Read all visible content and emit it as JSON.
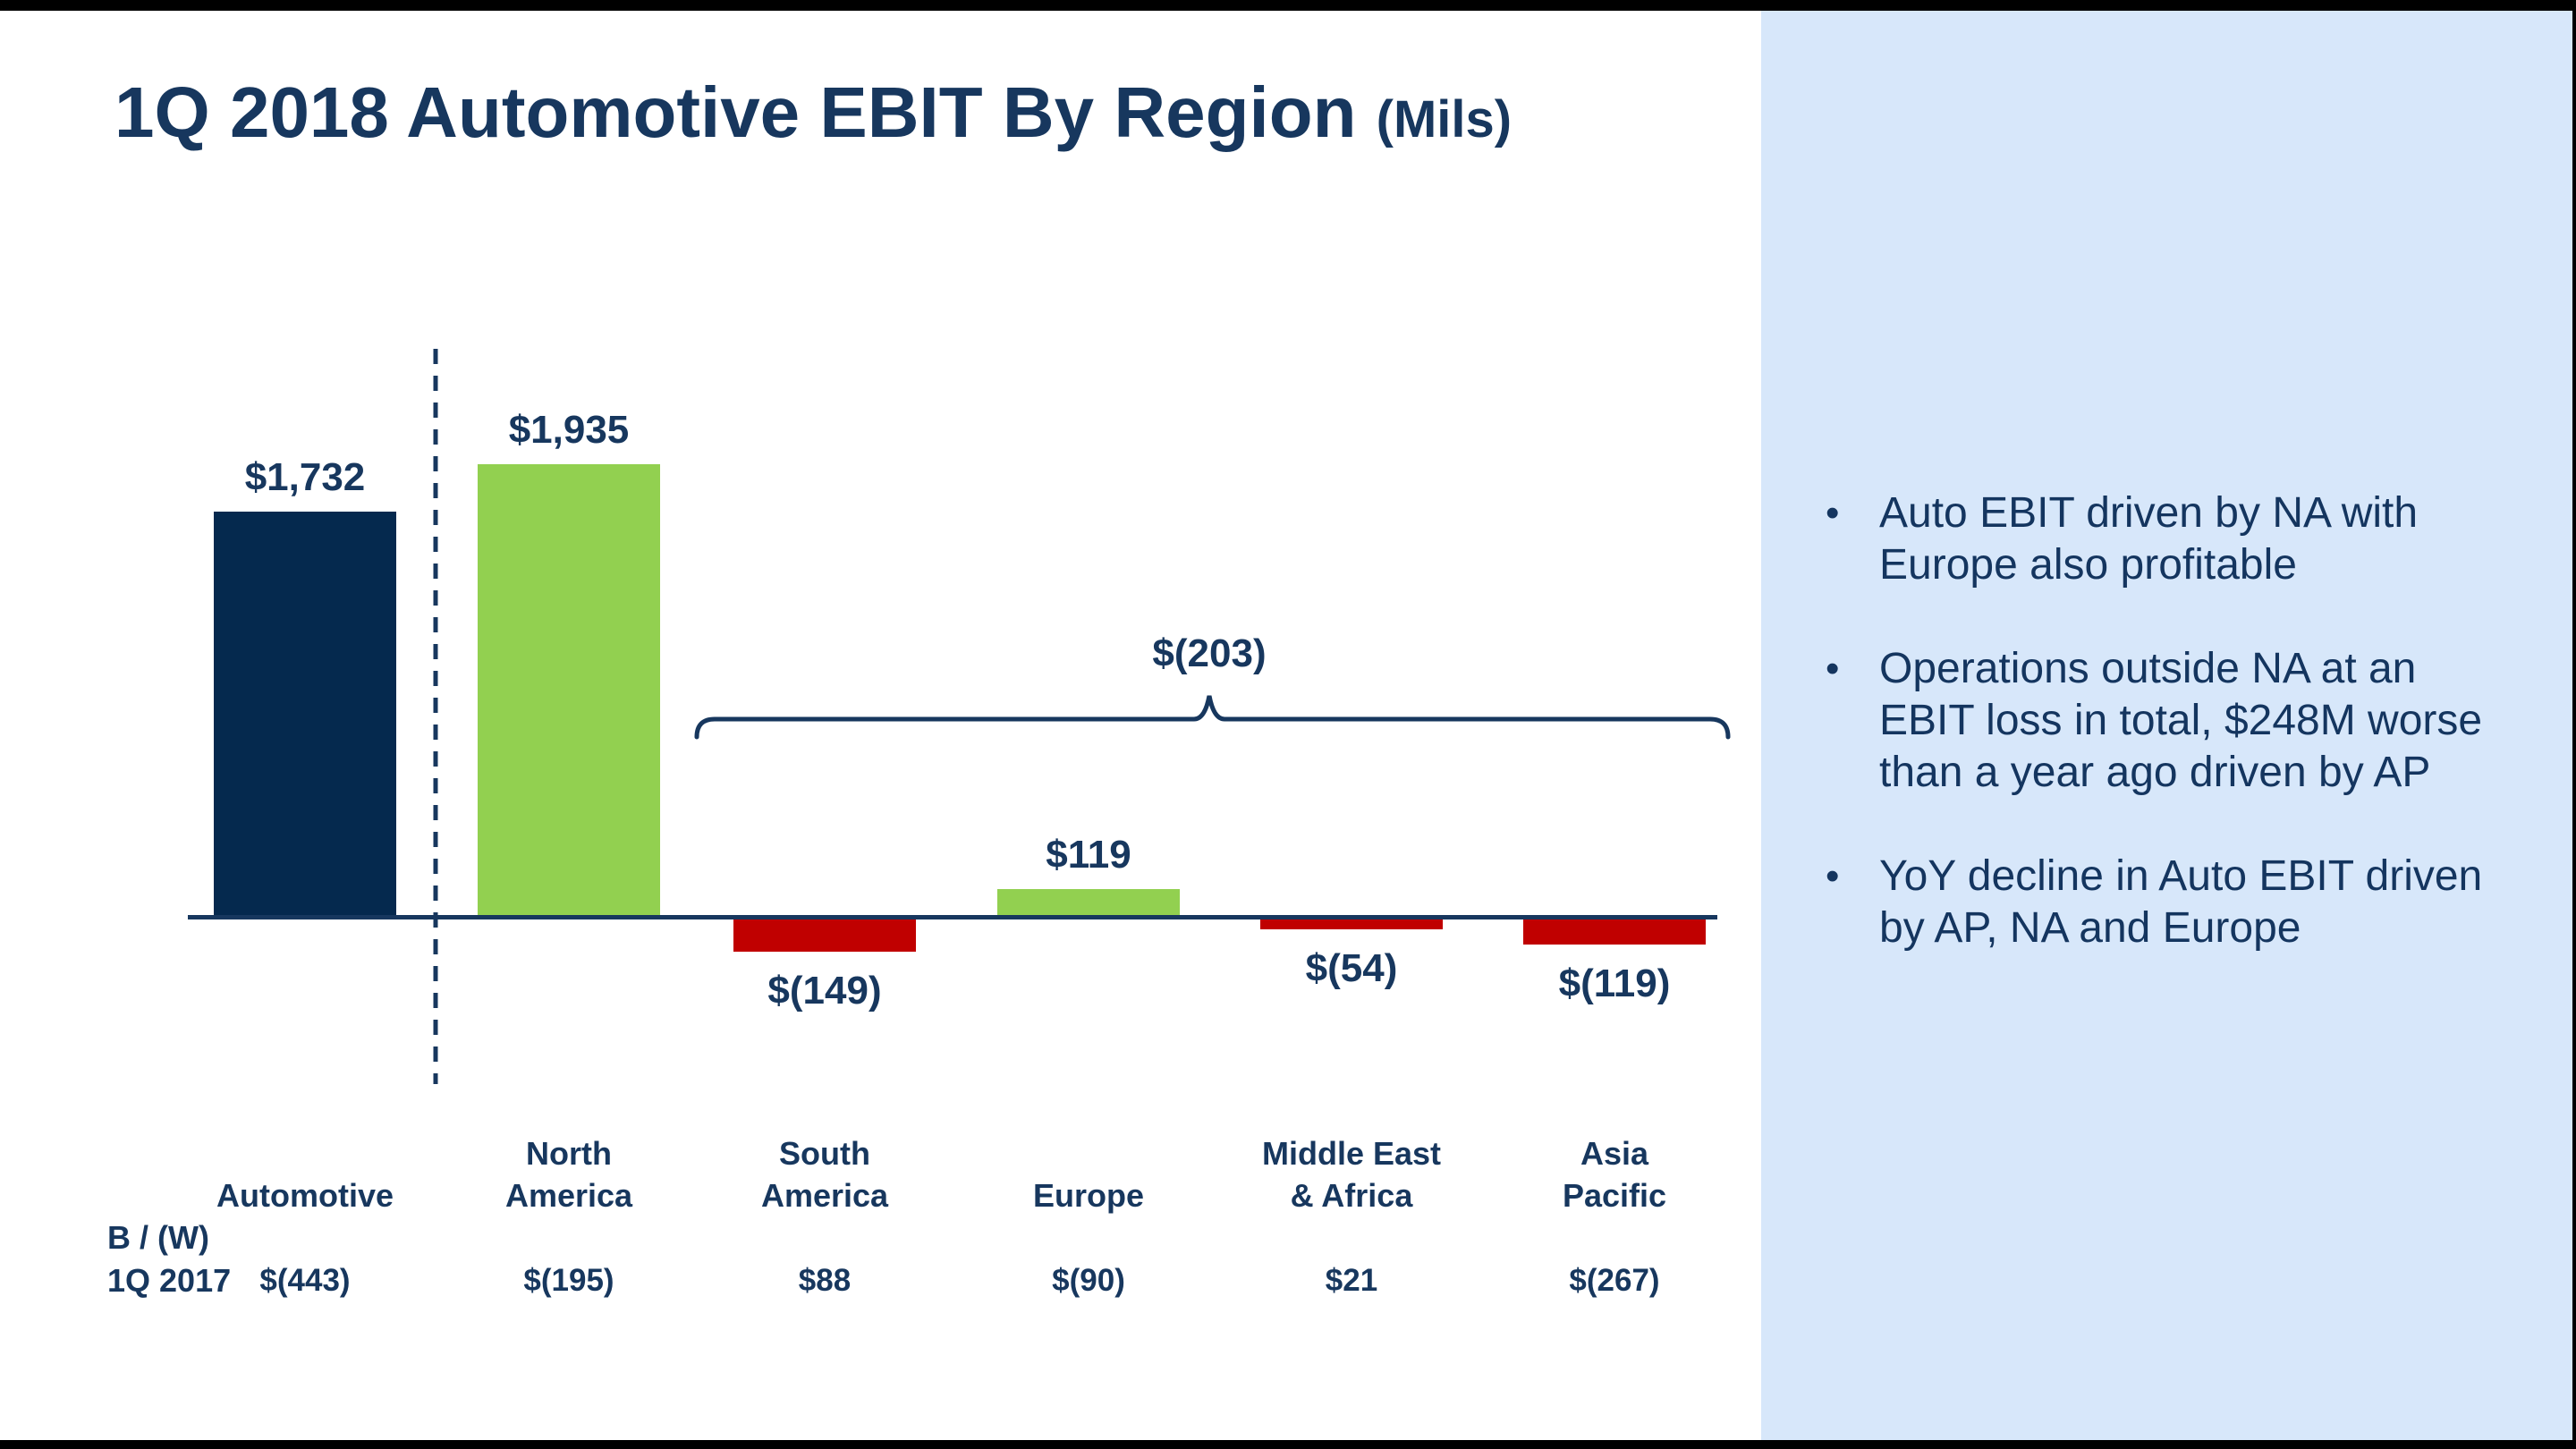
{
  "title": {
    "main": "1Q 2018 Automotive EBIT By Region",
    "suffix": "(Mils)"
  },
  "chart_data": {
    "type": "bar",
    "title": "1Q 2018 Automotive EBIT By Region (Mils)",
    "unit": "USD millions",
    "categories": [
      "Automotive",
      "North America",
      "South America",
      "Europe",
      "Middle East & Africa",
      "Asia Pacific"
    ],
    "category_lines": [
      [
        "Automotive"
      ],
      [
        "North",
        "America"
      ],
      [
        "South",
        "America"
      ],
      [
        "Europe"
      ],
      [
        "Middle East",
        "& Africa"
      ],
      [
        "Asia",
        "Pacific"
      ]
    ],
    "values": [
      1732,
      1935,
      -149,
      119,
      -54,
      -119
    ],
    "value_labels": [
      "$1,732",
      "$1,935",
      "$(149)",
      "$119",
      "$(54)",
      "$(119)"
    ],
    "bar_colors": [
      "#05294E",
      "#92D050",
      "#C00000",
      "#92D050",
      "#C00000",
      "#C00000"
    ],
    "baseline": 0,
    "grid": false,
    "legend": false,
    "separator": {
      "type": "dashed-line",
      "after_category": "Automotive"
    },
    "group_annotation": {
      "label": "$(203)",
      "covers": [
        "South America",
        "Europe",
        "Middle East & Africa",
        "Asia Pacific"
      ]
    },
    "comparison": {
      "header": "B / (W)",
      "row_label": "1Q 2017",
      "values": [
        "$(443)",
        "$(195)",
        "$88",
        "$(90)",
        "$21",
        "$(267)"
      ]
    }
  },
  "sidebar": {
    "background": "#D7E7FA",
    "bullets": [
      "Auto EBIT driven by NA with Europe also profitable",
      "Operations outside NA at an EBIT loss in total, $248M worse than a year ago driven by AP",
      "YoY decline in Auto EBIT driven by AP, NA and Europe"
    ]
  },
  "colors": {
    "navy_bar": "#05294E",
    "green_bar": "#92D050",
    "red_bar": "#C00000",
    "text_navy": "#17375E",
    "line_navy": "#17375E",
    "sidebar_bg": "#D7E7FA",
    "slide_bg": "#FFFFFF",
    "letterbox": "#000000"
  }
}
